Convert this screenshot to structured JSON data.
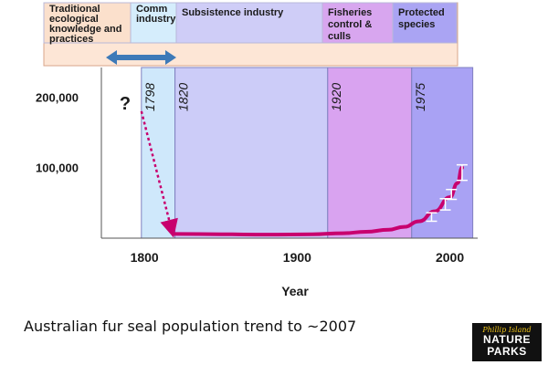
{
  "chart_data": {
    "type": "line",
    "title": "",
    "xlabel": "Year",
    "ylabel": "",
    "xlim": [
      1770,
      2020
    ],
    "ylim": [
      0,
      220000
    ],
    "x_ticks": [
      1800,
      1900,
      2000
    ],
    "x_tick_labels": [
      "1800",
      "1900",
      "2000"
    ],
    "y_ticks": [
      100000,
      200000
    ],
    "y_tick_labels": [
      "100,000",
      "200,000"
    ],
    "unknown_marker": "?",
    "estimated_decline": {
      "from": [
        1798,
        180000
      ],
      "to": [
        1818,
        10000
      ]
    },
    "series": [
      {
        "color": "#c8006e",
        "x": [
          1820,
          1850,
          1880,
          1910,
          1930,
          1945,
          1960,
          1970,
          1980,
          1990,
          2000,
          2005,
          2008
        ],
        "y": [
          6000,
          5500,
          5000,
          5500,
          7000,
          9000,
          12000,
          16000,
          24000,
          38000,
          58000,
          78000,
          100000
        ]
      }
    ],
    "error_bars": [
      {
        "x": 1988,
        "y": 30000,
        "low": 24000,
        "high": 36000
      },
      {
        "x": 1997,
        "y": 48000,
        "low": 40000,
        "high": 56000
      },
      {
        "x": 2001,
        "y": 62000,
        "low": 55000,
        "high": 69000
      },
      {
        "x": 2008,
        "y": 92000,
        "low": 82000,
        "high": 104000
      }
    ],
    "eras": [
      {
        "label": "",
        "start_label": "1798",
        "from": 1798,
        "to": 1820,
        "color": "#cfe8fb"
      },
      {
        "label": "",
        "start_label": "1820",
        "from": 1820,
        "to": 1920,
        "color": "#ccccf8"
      },
      {
        "label": "",
        "start_label": "1920",
        "from": 1920,
        "to": 1975,
        "color": "#d9a3f0"
      },
      {
        "label": "",
        "start_label": "1975",
        "from": 1975,
        "to": 2015,
        "color": "#a9a2f4"
      }
    ],
    "phases": [
      {
        "label": [
          "Traditional",
          "ecological",
          "knowledge and",
          "practices"
        ],
        "color": "#fbe0cc"
      },
      {
        "label": [
          "Comm",
          "industry"
        ],
        "color": "#d5edfc"
      },
      {
        "label": [
          "Subsistence industry"
        ],
        "color": "#cfcdf7"
      },
      {
        "label": [
          "Fisheries",
          "control &",
          "culls"
        ],
        "color": "#d8a6ef"
      },
      {
        "label": [
          "Protected",
          "species"
        ],
        "color": "#aaa4f3"
      }
    ],
    "transition_arrow": "double-headed, blue",
    "grid": false,
    "legend": "none"
  },
  "caption": "Australian fur seal population trend to ~2007",
  "logo": {
    "line1": "Phillip Island",
    "line2": "NATURE",
    "line3": "PARKS"
  }
}
